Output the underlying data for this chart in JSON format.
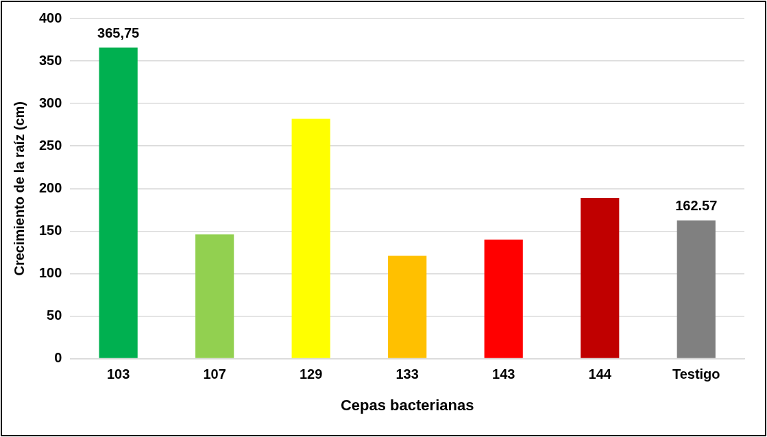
{
  "chart_data": {
    "type": "bar",
    "xlabel": "Cepas bacterianas",
    "ylabel": "Crecimiento de la raíz (cm)",
    "categories": [
      "103",
      "107",
      "129",
      "133",
      "143",
      "144",
      "Testigo"
    ],
    "values": [
      365.75,
      146,
      282,
      121,
      140,
      189,
      162.57
    ],
    "colors": [
      "#00b050",
      "#92d050",
      "#ffff00",
      "#ffc000",
      "#ff0000",
      "#c00000",
      "#808080"
    ],
    "value_labels": [
      "365,75",
      null,
      null,
      null,
      null,
      null,
      "162.57"
    ],
    "ylim": [
      0,
      400
    ],
    "yticks": [
      0,
      50,
      100,
      150,
      200,
      250,
      300,
      350,
      400
    ],
    "grid": "y",
    "legend": false
  }
}
